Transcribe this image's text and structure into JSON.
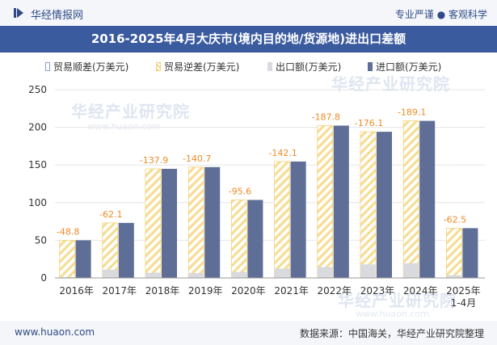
{
  "header": {
    "brand": "华经情报网",
    "tagline": "专业严谨 ● 客观科学"
  },
  "watermark": {
    "text": "华经产业研究院",
    "url": "www.huaon.com"
  },
  "colors": {
    "brand_blue": "#2f4a86",
    "title_bg": "#3b5b9f",
    "export_bar": "#d9dadd",
    "import_bar": "#5e6e96",
    "reverse_hatch": "#f3d37a",
    "label_orange": "#f08a24"
  },
  "chart_data": {
    "type": "bar",
    "title": "2016-2025年4月大庆市(境内目的地/货源地)进出口差额",
    "categories": [
      "2016年",
      "2017年",
      "2018年",
      "2019年",
      "2020年",
      "2021年",
      "2022年",
      "2023年",
      "2024年",
      "2025年\n1-4月"
    ],
    "ylim": [
      0,
      250
    ],
    "yticks": [
      0,
      50,
      100,
      150,
      200,
      250
    ],
    "grid": true,
    "legend_position": "top",
    "series": [
      {
        "name": "贸易顺差(万美元)",
        "values": [
          0,
          0,
          0,
          0,
          0,
          0,
          0,
          0,
          0,
          0
        ]
      },
      {
        "name": "贸易逆差(万美元)",
        "values": [
          -48.8,
          -62.1,
          -137.9,
          -140.7,
          -95.6,
          -142.1,
          -187.8,
          -176.1,
          -189.1,
          -62.5
        ]
      },
      {
        "name": "出口额(万美元)",
        "values": [
          1.2,
          11.0,
          7.0,
          6.5,
          8.0,
          12.5,
          14.5,
          18.0,
          19.5,
          3.6
        ]
      },
      {
        "name": "进口额(万美元)",
        "values": [
          50.0,
          73.1,
          144.9,
          147.2,
          103.6,
          154.6,
          202.3,
          194.1,
          208.6,
          66.1
        ]
      }
    ]
  },
  "footer": {
    "site": "www.huaon.com",
    "source": "数据来源：中国海关，华经产业研究院整理"
  }
}
